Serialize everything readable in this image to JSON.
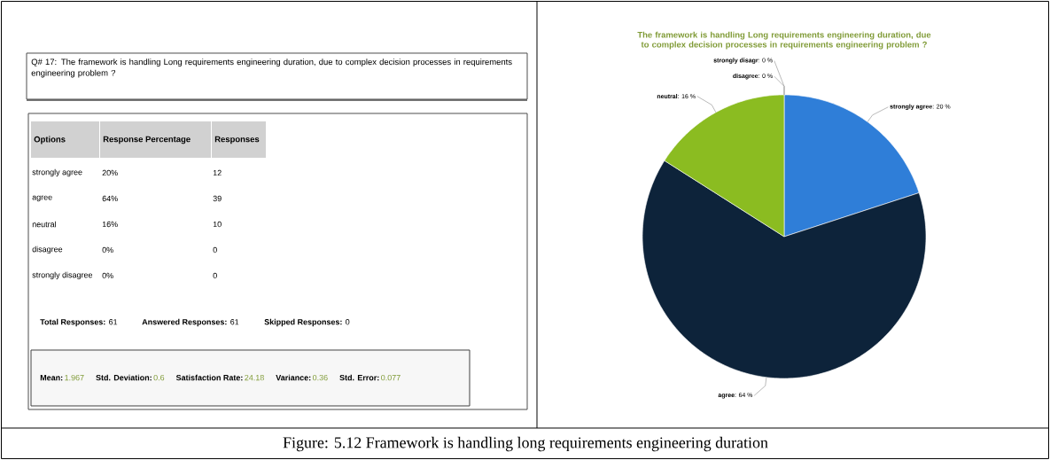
{
  "chart_data": [
    {
      "type": "other",
      "title": "Q# 17: The framework is handling Long requirements engineering duration, due to complex decision processes in requirements engineering problem ?",
      "annotations": [
        "Options",
        "Response Percentage",
        "Responses",
        "strongly agree",
        "20%",
        "12",
        "agree",
        "64%",
        "39",
        "neutral",
        "16%",
        "10",
        "disagree",
        "0%",
        "0",
        "strongly disagree",
        "0%",
        "0",
        "Total Responses:",
        "61",
        "Answered Responses:",
        "61",
        "Skipped Responses:",
        "0",
        "Mean:",
        "1.967",
        "Std. Deviation:",
        "0.6",
        "Satisfaction Rate:",
        "24.18",
        "Variance:",
        "0.36",
        "Std. Error:",
        "0.077",
        "Figure: 5.12 Framework is handling long requirements engineering duration"
      ]
    },
    {
      "type": "pie",
      "title": "The framework is handling Long requirements engineering duration, due to complex decision processes in requirements engineering problem ?",
      "categories": [
        "strongly agree",
        "agree",
        "neutral",
        "disagree",
        "strongly disagr"
      ],
      "values": [
        20,
        64,
        16,
        0,
        0
      ],
      "value_labels": [
        ": 20 %",
        ": 64 %",
        ": 16 %",
        ": 0 %",
        ": 0 %"
      ],
      "colors": [
        "#2f7ed8",
        "#0d233a",
        "#8bbc21",
        "#910000",
        "#1aadce"
      ]
    }
  ]
}
